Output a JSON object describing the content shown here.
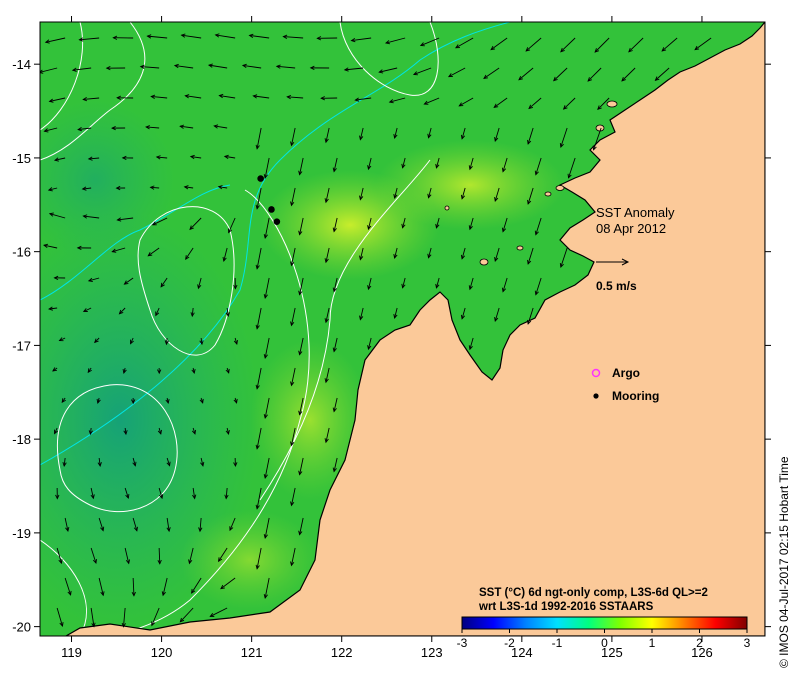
{
  "map": {
    "lon_ticks": [
      "119",
      "120",
      "121",
      "122",
      "123",
      "124",
      "125",
      "126"
    ],
    "lat_ticks": [
      "-14",
      "-15",
      "-16",
      "-17",
      "-18",
      "-19",
      "-20"
    ],
    "lon_range": [
      118.65,
      126.7
    ],
    "lat_range": [
      -20.1,
      -13.55
    ]
  },
  "annotation": {
    "title_line1": "SST Anomaly",
    "title_line2": "08 Apr 2012",
    "scale_label": "0.5 m/s"
  },
  "legend": {
    "argo_label": "Argo",
    "mooring_label": "Mooring",
    "argo_color": "#ff33ff",
    "mooring_color": "#000000"
  },
  "colorbar": {
    "caption_line1": "SST (°C) 6d ngt-only comp, L3S-6d QL>=2",
    "caption_line2": "wrt L3S-1d 1992-2016 SSTAARS",
    "ticks": [
      "-3",
      "-2",
      "-1",
      "0",
      "1",
      "2",
      "3"
    ],
    "colors": [
      "#000080",
      "#0000ff",
      "#0080ff",
      "#00e0ff",
      "#00ff80",
      "#80ff00",
      "#ffff00",
      "#ff8000",
      "#ff0000",
      "#800000"
    ]
  },
  "moorings": [
    {
      "lon": 121.1,
      "lat": -15.22
    },
    {
      "lon": 121.22,
      "lat": -15.55
    },
    {
      "lon": 121.28,
      "lat": -15.68
    }
  ],
  "credit": "© IMOS 04-Jul-2017 02:15 Hobart Time",
  "colors": {
    "land": "#fbc999",
    "sst_base": "#33c23a",
    "sst_warm": "#b6ec2a",
    "sst_cool": "#1fae6e",
    "contour": "#ffffff",
    "isobath": "#00e5e5"
  }
}
